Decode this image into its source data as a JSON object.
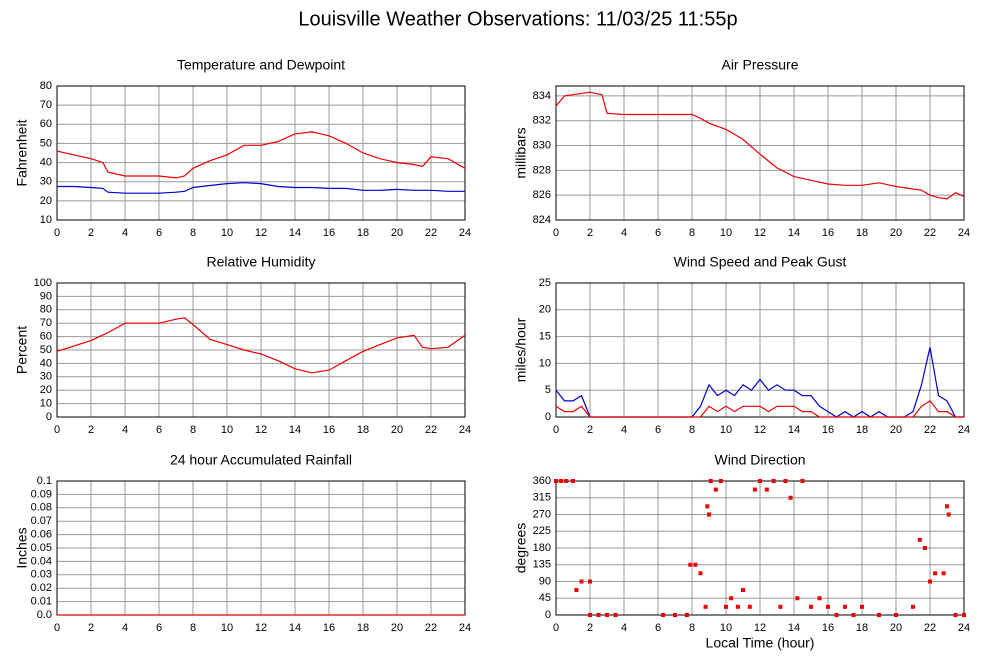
{
  "title": "Louisville Weather Observations: 11/03/25 11:55p",
  "chart_data": [
    {
      "type": "line",
      "title": "Temperature and Dewpoint",
      "ylabel": "Fahrenheit",
      "x": [
        0,
        1,
        2,
        2.7,
        3,
        4,
        5,
        6,
        7,
        7.5,
        8,
        9,
        10,
        11,
        12,
        13,
        14,
        15,
        16,
        17,
        18,
        19,
        20,
        21,
        21.5,
        22,
        23,
        24
      ],
      "series": [
        {
          "color": "#ee0000",
          "values": [
            46,
            44,
            42,
            40,
            35,
            33,
            33,
            33,
            32,
            33,
            37,
            41,
            44,
            49,
            49,
            51,
            55,
            56,
            54,
            50,
            45,
            42,
            40,
            39,
            38,
            43,
            42,
            37
          ]
        },
        {
          "color": "#0000cc",
          "values": [
            27.5,
            27.5,
            27,
            26.5,
            24.5,
            24,
            24,
            24,
            24.5,
            25,
            27,
            28,
            29,
            29.5,
            29,
            27.5,
            27,
            27,
            26.5,
            26.5,
            25.5,
            25.5,
            26,
            25.5,
            25.5,
            25.5,
            25,
            25
          ]
        }
      ],
      "xlim": [
        0,
        24
      ],
      "xticks": [
        0,
        2,
        4,
        6,
        8,
        10,
        12,
        14,
        16,
        18,
        20,
        22,
        24
      ],
      "ylim": [
        10,
        80
      ],
      "yticks": [
        10,
        20,
        30,
        40,
        50,
        60,
        70,
        80
      ],
      "grid": true
    },
    {
      "type": "line",
      "title": "Air Pressure",
      "ylabel": "millibars",
      "x": [
        0,
        0.5,
        1,
        2,
        2.7,
        3,
        4,
        5,
        6,
        7,
        8,
        8.5,
        9,
        10,
        11,
        12,
        13,
        14,
        15,
        16,
        17,
        18,
        19,
        20,
        21,
        21.5,
        22,
        22.5,
        23,
        23.5,
        24
      ],
      "series": [
        {
          "color": "#ee0000",
          "values": [
            833.2,
            834,
            834.1,
            834.3,
            834.1,
            832.6,
            832.5,
            832.5,
            832.5,
            832.5,
            832.5,
            832.2,
            831.8,
            831.3,
            830.5,
            829.3,
            828.2,
            827.5,
            827.2,
            826.9,
            826.8,
            826.8,
            827,
            826.7,
            826.5,
            826.4,
            826,
            825.8,
            825.7,
            826.2,
            825.9
          ]
        }
      ],
      "xlim": [
        0,
        24
      ],
      "xticks": [
        0,
        2,
        4,
        6,
        8,
        10,
        12,
        14,
        16,
        18,
        20,
        22,
        24
      ],
      "ylim": [
        824,
        834.8
      ],
      "yticks": [
        824,
        826,
        828,
        830,
        832,
        834
      ],
      "grid": true
    },
    {
      "type": "line",
      "title": "Relative Humidity",
      "ylabel": "Percent",
      "x": [
        0,
        1,
        2,
        3,
        4,
        5,
        6,
        7,
        7.5,
        8,
        9,
        10,
        11,
        12,
        13,
        14,
        15,
        16,
        17,
        18,
        19,
        20,
        21,
        21.5,
        22,
        23,
        24
      ],
      "series": [
        {
          "color": "#ee0000",
          "values": [
            49,
            53,
            57,
            63,
            70,
            70,
            70,
            73,
            74,
            69,
            58,
            54,
            50,
            47,
            42,
            36,
            33,
            35,
            42,
            49,
            54,
            59,
            61,
            52,
            51,
            52,
            61
          ]
        }
      ],
      "xlim": [
        0,
        24
      ],
      "xticks": [
        0,
        2,
        4,
        6,
        8,
        10,
        12,
        14,
        16,
        18,
        20,
        22,
        24
      ],
      "ylim": [
        0,
        100
      ],
      "yticks": [
        0,
        10,
        20,
        30,
        40,
        50,
        60,
        70,
        80,
        90,
        100
      ],
      "grid": true
    },
    {
      "type": "line",
      "title": "Wind Speed and Peak Gust",
      "ylabel": "miles/hour",
      "x": [
        0,
        0.5,
        1,
        1.5,
        2,
        2.5,
        3,
        3.5,
        4,
        4.5,
        5,
        5.5,
        6,
        6.5,
        7,
        7.5,
        8,
        8.5,
        9,
        9.5,
        10,
        10.5,
        11,
        11.5,
        12,
        12.5,
        13,
        13.5,
        14,
        14.5,
        15,
        15.5,
        16,
        16.5,
        17,
        17.5,
        18,
        18.5,
        19,
        19.5,
        20,
        20.5,
        21,
        21.5,
        22,
        22.5,
        23,
        23.5,
        24
      ],
      "series": [
        {
          "color": "#0000cc",
          "values": [
            5,
            3,
            3,
            4,
            0,
            0,
            0,
            0,
            0,
            0,
            0,
            0,
            0,
            0,
            0,
            0,
            0,
            2,
            6,
            4,
            5,
            4,
            6,
            5,
            7,
            5,
            6,
            5,
            5,
            4,
            4,
            2,
            1,
            0,
            1,
            0,
            1,
            0,
            1,
            0,
            0,
            0,
            1,
            6,
            13,
            4,
            3,
            0,
            0
          ]
        },
        {
          "color": "#ee0000",
          "values": [
            2,
            1,
            1,
            2,
            0,
            0,
            0,
            0,
            0,
            0,
            0,
            0,
            0,
            0,
            0,
            0,
            0,
            0,
            2,
            1,
            2,
            1,
            2,
            2,
            2,
            1,
            2,
            2,
            2,
            1,
            1,
            0,
            0,
            0,
            0,
            0,
            0,
            0,
            0,
            0,
            0,
            0,
            0,
            2,
            3,
            1,
            1,
            0,
            0
          ]
        }
      ],
      "xlim": [
        0,
        24
      ],
      "xticks": [
        0,
        2,
        4,
        6,
        8,
        10,
        12,
        14,
        16,
        18,
        20,
        22,
        24
      ],
      "ylim": [
        0,
        25
      ],
      "yticks": [
        0,
        5,
        10,
        15,
        20,
        25
      ],
      "grid": true
    },
    {
      "type": "line",
      "title": "24 hour Accumulated Rainfall",
      "ylabel": "Inches",
      "x": [
        0,
        24
      ],
      "series": [
        {
          "color": "#ee0000",
          "values": [
            0,
            0
          ]
        }
      ],
      "xlim": [
        0,
        24
      ],
      "xticks": [
        0,
        2,
        4,
        6,
        8,
        10,
        12,
        14,
        16,
        18,
        20,
        22,
        24
      ],
      "ylim": [
        0,
        0.1
      ],
      "yticks": [
        {
          "value": 0,
          "label": "0.0"
        },
        0.01,
        0.02,
        0.03,
        0.04,
        0.05,
        0.06,
        0.07,
        0.08,
        0.09,
        0.1
      ],
      "grid": true
    },
    {
      "type": "scatter",
      "title": "Wind Direction",
      "ylabel": "degrees",
      "xlabel": "Local Time (hour)",
      "x": [
        0,
        0.3,
        0.6,
        1,
        1.2,
        1.5,
        2,
        2,
        2.5,
        3,
        3.5,
        6.3,
        7,
        7.7,
        7.9,
        8.2,
        8.5,
        8.8,
        8.9,
        9,
        9.1,
        9.4,
        9.7,
        10,
        10.3,
        10.7,
        11,
        11.4,
        11.7,
        12,
        12.4,
        12.8,
        13.2,
        13.5,
        13.8,
        14.2,
        14.5,
        15,
        15.5,
        16,
        16.5,
        17,
        17.5,
        18,
        19,
        20,
        21,
        21.4,
        21.7,
        22,
        22.3,
        22.8,
        23,
        23.1,
        23.5,
        24
      ],
      "series": [
        {
          "color": "#ee0000",
          "values": [
            360,
            360,
            360,
            360,
            67,
            90,
            90,
            0,
            0,
            0,
            0,
            0,
            0,
            0,
            135,
            135,
            112,
            22,
            292,
            270,
            360,
            337,
            360,
            22,
            45,
            22,
            67,
            22,
            337,
            360,
            337,
            360,
            22,
            360,
            315,
            45,
            360,
            22,
            45,
            22,
            0,
            22,
            0,
            22,
            0,
            0,
            22,
            202,
            180,
            90,
            112,
            112,
            292,
            270,
            0,
            0
          ]
        }
      ],
      "xlim": [
        0,
        24
      ],
      "xticks": [
        0,
        2,
        4,
        6,
        8,
        10,
        12,
        14,
        16,
        18,
        20,
        22,
        24
      ],
      "ylim": [
        0,
        360
      ],
      "yticks": [
        0,
        45,
        90,
        135,
        180,
        225,
        270,
        315,
        360
      ],
      "grid": true
    }
  ]
}
